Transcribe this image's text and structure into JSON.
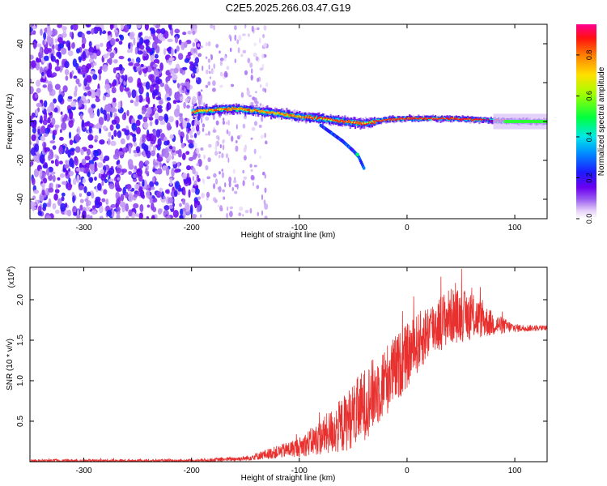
{
  "title": "C2E5.2025.266.03.47.G19",
  "chart_data": [
    {
      "type": "heatmap",
      "xlabel": "Height of straight line (km)",
      "ylabel": "Frequency (Hz)",
      "xlim": [
        -350,
        130
      ],
      "ylim": [
        -50,
        50
      ],
      "xticks": [
        -300,
        -200,
        -100,
        0,
        100
      ],
      "yticks": [
        -40,
        -20,
        0,
        20,
        40
      ],
      "colorbar": {
        "label": "Normalized spectral amplitude",
        "range": [
          0.0,
          0.95
        ],
        "ticks": [
          0.0,
          0.2,
          0.4,
          0.6,
          0.8
        ],
        "tick_labels": [
          "0.0",
          "0.2",
          "0.4",
          "0.6",
          "0.8"
        ],
        "colormap": "rainbow (white-violet-blue-cyan-green-yellow-orange-red-magenta)"
      },
      "features": {
        "noise_region_x": [
          -350,
          -200
        ],
        "main_track": {
          "x": [
            -200,
            -180,
            -160,
            -140,
            -120,
            -100,
            -80,
            -60,
            -40,
            -20,
            0,
            20,
            40,
            60,
            80,
            100,
            130
          ],
          "freq": [
            5,
            6,
            6.5,
            5.5,
            4,
            2.5,
            1.5,
            0,
            -1,
            1,
            1.5,
            1.5,
            1.5,
            1,
            0.5,
            0,
            0
          ]
        },
        "secondary_branch": {
          "x": [
            -80,
            -70,
            -60,
            -50,
            -45,
            -40
          ],
          "freq": [
            -2,
            -6,
            -10,
            -15,
            -18,
            -24
          ]
        }
      }
    },
    {
      "type": "line",
      "xlabel": "Height of straight line (km)",
      "ylabel": "SNR (10 * v/v)",
      "y_multiplier": "(x10⁴)",
      "y_multiplier_base": "(x10",
      "y_multiplier_exp": "4",
      "y_multiplier_close": ")",
      "xlim": [
        -350,
        130
      ],
      "ylim": [
        0,
        2.4
      ],
      "xticks": [
        -300,
        -200,
        -100,
        0,
        100
      ],
      "yticks": [
        0.5,
        1.0,
        1.5,
        2.0
      ],
      "ytick_labels": [
        "0.5",
        "1.0",
        "1.5",
        "2.0"
      ],
      "color": "#e8302e",
      "envelope": {
        "x": [
          -350,
          -200,
          -150,
          -120,
          -100,
          -80,
          -60,
          -40,
          -20,
          0,
          20,
          40,
          60,
          80,
          100,
          130
        ],
        "center": [
          0.01,
          0.01,
          0.04,
          0.12,
          0.18,
          0.3,
          0.45,
          0.7,
          1.0,
          1.3,
          1.62,
          1.8,
          1.8,
          1.7,
          1.65,
          1.65
        ],
        "spread": [
          0.02,
          0.02,
          0.03,
          0.08,
          0.12,
          0.22,
          0.35,
          0.45,
          0.45,
          0.4,
          0.35,
          0.35,
          0.3,
          0.15,
          0.05,
          0.03
        ]
      }
    }
  ]
}
